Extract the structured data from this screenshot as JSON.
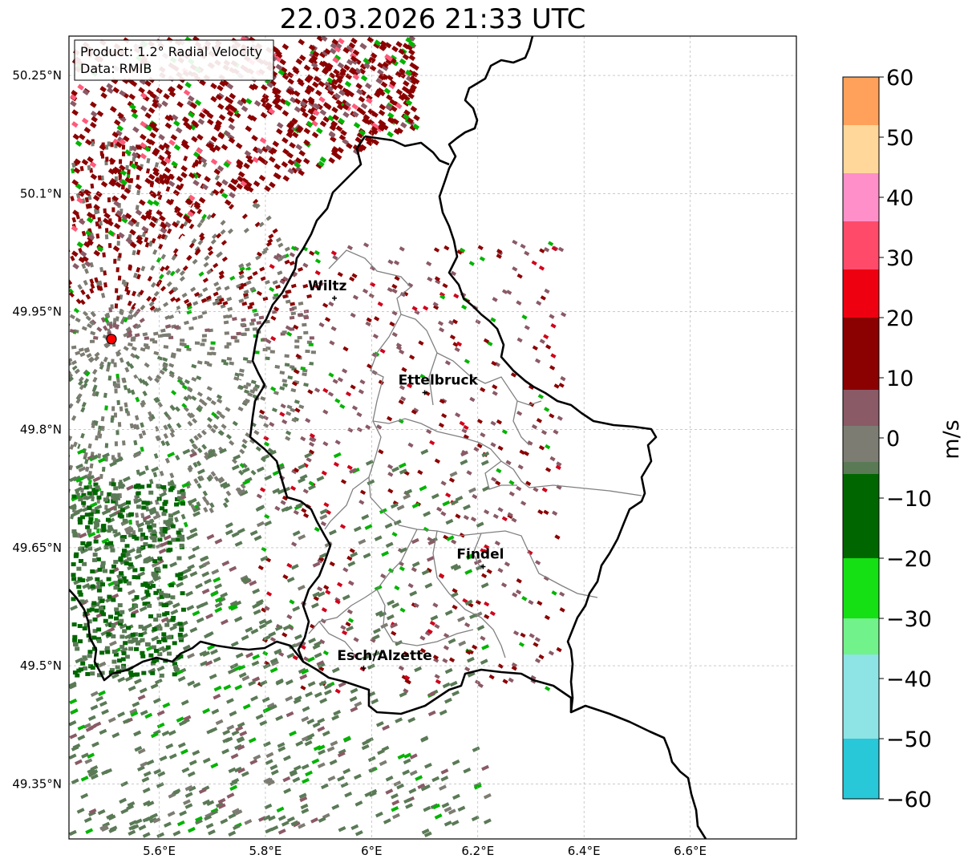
{
  "title": "22.03.2026 21:33 UTC",
  "info": {
    "product": "Product: 1.2° Radial Velocity",
    "data_source": "Data: RMIB"
  },
  "map": {
    "lon_range": [
      5.43,
      6.8
    ],
    "lat_range": [
      49.28,
      50.3
    ],
    "lat_ticks": [
      {
        "value": 50.25,
        "label": "50.25°N"
      },
      {
        "value": 50.1,
        "label": "50.1°N"
      },
      {
        "value": 49.95,
        "label": "49.95°N"
      },
      {
        "value": 49.8,
        "label": "49.8°N"
      },
      {
        "value": 49.65,
        "label": "49.65°N"
      },
      {
        "value": 49.5,
        "label": "49.5°N"
      },
      {
        "value": 49.35,
        "label": "49.35°N"
      }
    ],
    "lon_ticks": [
      {
        "value": 5.6,
        "label": "5.6°E"
      },
      {
        "value": 5.8,
        "label": "5.8°E"
      },
      {
        "value": 6.0,
        "label": "6°E"
      },
      {
        "value": 6.2,
        "label": "6.2°E"
      },
      {
        "value": 6.4,
        "label": "6.4°E"
      },
      {
        "value": 6.6,
        "label": "6.6°E"
      }
    ],
    "gridlines": true,
    "radar_site": {
      "lon": 5.51,
      "lat": 49.915
    },
    "cities": [
      {
        "name": "Wiltz",
        "lon": 5.93,
        "lat": 49.967
      },
      {
        "name": "Ettelbruck",
        "lon": 6.1,
        "lat": 49.847
      },
      {
        "name": "Findel",
        "lon": 6.21,
        "lat": 49.626
      },
      {
        "name": "Esch/Alzette",
        "lon": 5.985,
        "lat": 49.497
      }
    ]
  },
  "colorbar": {
    "label": "m/s",
    "range": [
      -60,
      60
    ],
    "ticks": [
      {
        "value": 60,
        "label": "60"
      },
      {
        "value": 50,
        "label": "50"
      },
      {
        "value": 40,
        "label": "40"
      },
      {
        "value": 30,
        "label": "30"
      },
      {
        "value": 20,
        "label": "20"
      },
      {
        "value": 10,
        "label": "10"
      },
      {
        "value": 0,
        "label": "0"
      },
      {
        "value": -10,
        "label": "−10"
      },
      {
        "value": -20,
        "label": "−20"
      },
      {
        "value": -30,
        "label": "−30"
      },
      {
        "value": -40,
        "label": "−40"
      },
      {
        "value": -50,
        "label": "−50"
      },
      {
        "value": -60,
        "label": "−60"
      }
    ],
    "stops": [
      {
        "from": 52,
        "to": 60,
        "color": "#ffa15a"
      },
      {
        "from": 44,
        "to": 52,
        "color": "#ffd79a"
      },
      {
        "from": 36,
        "to": 44,
        "color": "#ff8fc8"
      },
      {
        "from": 28,
        "to": 36,
        "color": "#ff4a6a"
      },
      {
        "from": 20,
        "to": 28,
        "color": "#ef0010"
      },
      {
        "from": 8,
        "to": 20,
        "color": "#8b0000"
      },
      {
        "from": 2,
        "to": 8,
        "color": "#8a5a66"
      },
      {
        "from": -4,
        "to": 2,
        "color": "#7c7c72"
      },
      {
        "from": -6,
        "to": -4,
        "color": "#5a7a56"
      },
      {
        "from": -20,
        "to": -6,
        "color": "#006600"
      },
      {
        "from": -30,
        "to": -20,
        "color": "#14e014"
      },
      {
        "from": -36,
        "to": -30,
        "color": "#72f28a"
      },
      {
        "from": -50,
        "to": -36,
        "color": "#8ee4e4"
      },
      {
        "from": -60,
        "to": -50,
        "color": "#28c8d8"
      }
    ]
  },
  "colors": {
    "inbound_strong": "#8b0000",
    "inbound_light": "#8a5a66",
    "near_zero": "#7c7c72",
    "outbound": "#5a7a56",
    "outbound_strong": "#00b400",
    "border": "#000000",
    "admin_border": "#808080"
  }
}
